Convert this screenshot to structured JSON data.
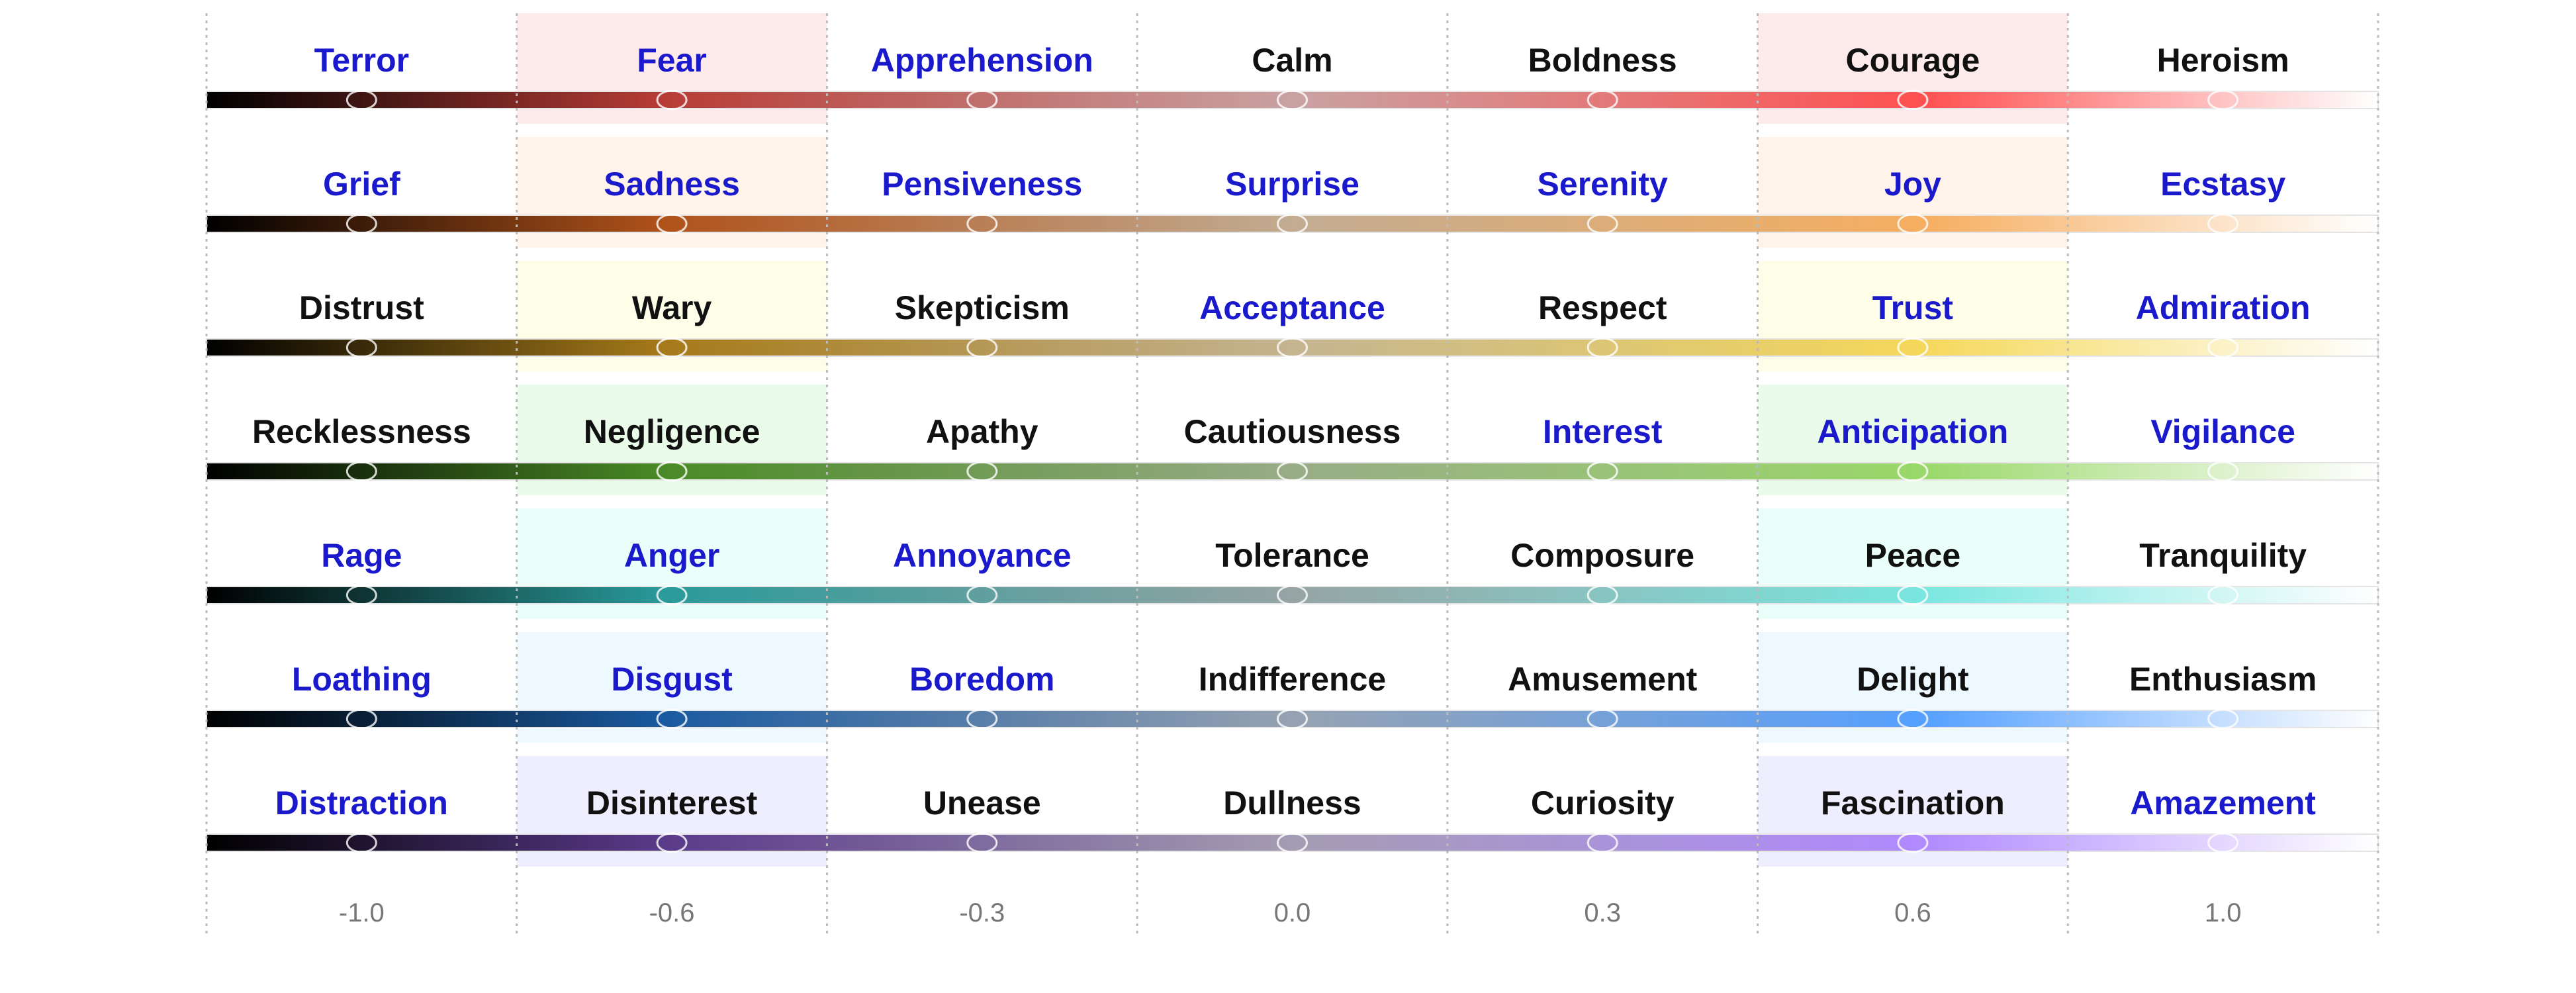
{
  "rows": [
    {
      "words": [
        "Terror",
        "Fear",
        "Apprehension",
        "Calm",
        "Boldness",
        "Courage",
        "Heroism"
      ],
      "word_colors": [
        "#1a1acc",
        "#1a1acc",
        "#1a1acc",
        "#111111",
        "#111111",
        "#111111",
        "#111111"
      ],
      "gradient": [
        "#000000",
        "#b83c36",
        "#c9a2a2",
        "#ff5050",
        "#ffffff"
      ],
      "highlight": "#fdeaea"
    },
    {
      "words": [
        "Grief",
        "Sadness",
        "Pensiveness",
        "Surprise",
        "Serenity",
        "Joy",
        "Ecstasy"
      ],
      "word_colors": [
        "#1a1acc",
        "#1a1acc",
        "#1a1acc",
        "#1a1acc",
        "#1a1acc",
        "#1a1acc",
        "#1a1acc"
      ],
      "gradient": [
        "#000000",
        "#b0521a",
        "#c2ac92",
        "#f6ae60",
        "#ffffff"
      ],
      "highlight": "#fff3ea"
    },
    {
      "words": [
        "Distrust",
        "Wary",
        "Skepticism",
        "Acceptance",
        "Respect",
        "Trust",
        "Admiration"
      ],
      "word_colors": [
        "#111111",
        "#111111",
        "#111111",
        "#1a1acc",
        "#111111",
        "#1a1acc",
        "#1a1acc"
      ],
      "gradient": [
        "#000000",
        "#a67a1a",
        "#c4b490",
        "#f5d85a",
        "#ffffff"
      ],
      "highlight": "#fdfde8"
    },
    {
      "words": [
        "Recklessness",
        "Negligence",
        "Apathy",
        "Cautiousness",
        "Interest",
        "Anticipation",
        "Vigilance"
      ],
      "word_colors": [
        "#111111",
        "#111111",
        "#111111",
        "#111111",
        "#1a1acc",
        "#1a1acc",
        "#1a1acc"
      ],
      "gradient": [
        "#000000",
        "#4a8a26",
        "#98ac86",
        "#9ad86a",
        "#ffffff"
      ],
      "highlight": "#eafbea"
    },
    {
      "words": [
        "Rage",
        "Anger",
        "Annoyance",
        "Tolerance",
        "Composure",
        "Peace",
        "Tranquility"
      ],
      "word_colors": [
        "#1a1acc",
        "#1a1acc",
        "#1a1acc",
        "#111111",
        "#111111",
        "#111111",
        "#111111"
      ],
      "gradient": [
        "#000000",
        "#2a9a9a",
        "#96a4a4",
        "#7ae6e0",
        "#ffffff"
      ],
      "highlight": "#eafffa"
    },
    {
      "words": [
        "Loathing",
        "Disgust",
        "Boredom",
        "Indifference",
        "Amusement",
        "Delight",
        "Enthusiasm"
      ],
      "word_colors": [
        "#1a1acc",
        "#1a1acc",
        "#1a1acc",
        "#111111",
        "#111111",
        "#111111",
        "#111111"
      ],
      "gradient": [
        "#000000",
        "#1a5aa0",
        "#96a2b2",
        "#55a0ff",
        "#ffffff"
      ],
      "highlight": "#eef8ff"
    },
    {
      "words": [
        "Distraction",
        "Disinterest",
        "Unease",
        "Dullness",
        "Curiosity",
        "Fascination",
        "Amazement"
      ],
      "word_colors": [
        "#1a1acc",
        "#111111",
        "#111111",
        "#111111",
        "#111111",
        "#111111",
        "#1a1acc"
      ],
      "gradient": [
        "#000000",
        "#5a3a8a",
        "#a49cb2",
        "#b08aff",
        "#ffffff"
      ],
      "highlight": "#eeeefe"
    }
  ],
  "ticks": [
    "-1.0",
    "-0.6",
    "-0.3",
    "0.0",
    "0.3",
    "0.6",
    "1.0"
  ]
}
